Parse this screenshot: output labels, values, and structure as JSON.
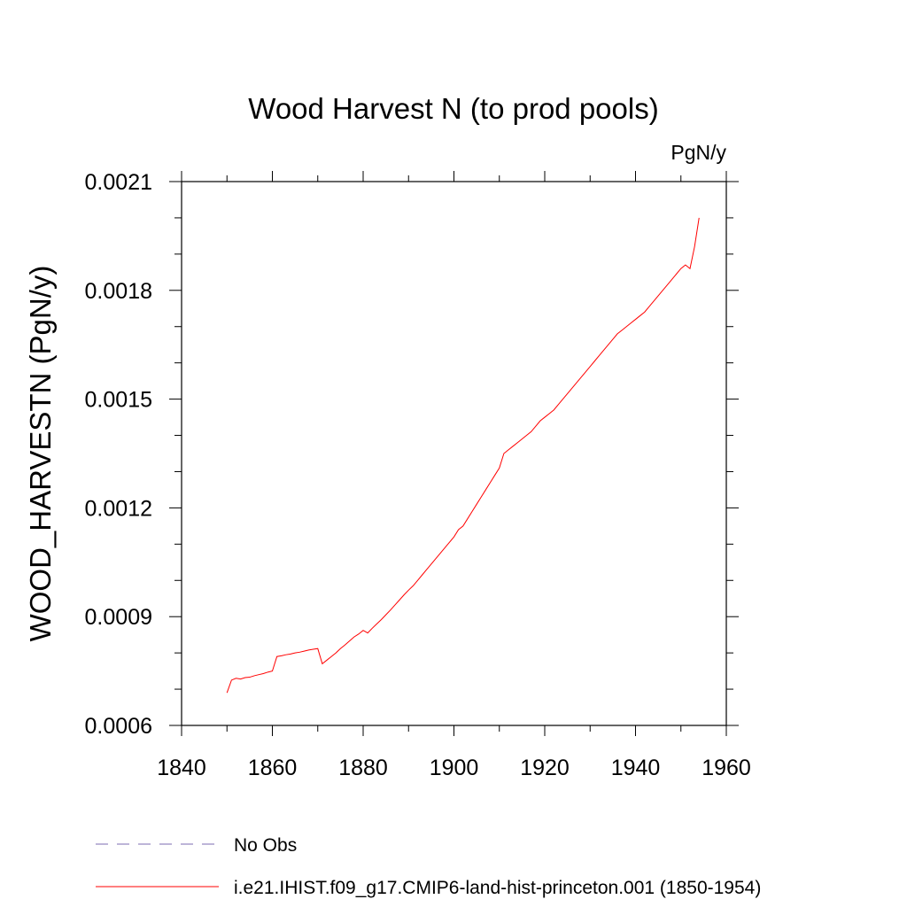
{
  "chart_data": {
    "type": "line",
    "title": "Wood Harvest N (to prod pools)",
    "units": "PgN/y",
    "xlabel": "",
    "ylabel": "WOOD_HARVESTN  (PgN/y)",
    "xlim": [
      1840,
      1960
    ],
    "ylim": [
      0.0006,
      0.0021
    ],
    "xticks": [
      1840,
      1860,
      1880,
      1900,
      1920,
      1940,
      1960
    ],
    "xtick_labels": [
      "1840",
      "1860",
      "1880",
      "1900",
      "1920",
      "1940",
      "1960"
    ],
    "yticks": [
      0.0006,
      0.0009,
      0.0012,
      0.0015,
      0.0018,
      0.0021
    ],
    "ytick_labels": [
      "0.0006",
      "0.0009",
      "0.0012",
      "0.0015",
      "0.0018",
      "0.0021"
    ],
    "grid": false,
    "legend_position": "bottom",
    "series": [
      {
        "name": "No Obs",
        "color": "#7b6bb0",
        "dash": "dashed",
        "x": [],
        "y": []
      },
      {
        "name": "i.e21.IHIST.f09_g17.CMIP6-land-hist-princeton.001 (1850-1954)",
        "color": "#ff0000",
        "dash": "solid",
        "x": [
          1850,
          1851,
          1852,
          1853,
          1854,
          1855,
          1856,
          1857,
          1858,
          1859,
          1860,
          1861,
          1862,
          1863,
          1864,
          1865,
          1866,
          1867,
          1868,
          1869,
          1870,
          1871,
          1872,
          1873,
          1874,
          1875,
          1876,
          1877,
          1878,
          1879,
          1880,
          1881,
          1882,
          1883,
          1884,
          1885,
          1886,
          1887,
          1888,
          1889,
          1890,
          1891,
          1892,
          1893,
          1894,
          1895,
          1896,
          1897,
          1898,
          1899,
          1900,
          1901,
          1902,
          1903,
          1904,
          1905,
          1906,
          1907,
          1908,
          1909,
          1910,
          1911,
          1912,
          1913,
          1914,
          1915,
          1916,
          1917,
          1918,
          1919,
          1920,
          1921,
          1922,
          1923,
          1924,
          1925,
          1926,
          1927,
          1928,
          1929,
          1930,
          1931,
          1932,
          1933,
          1934,
          1935,
          1936,
          1937,
          1938,
          1939,
          1940,
          1941,
          1942,
          1943,
          1944,
          1945,
          1946,
          1947,
          1948,
          1949,
          1950,
          1951,
          1952,
          1953,
          1954
        ],
        "y": [
          0.00069,
          0.000725,
          0.00073,
          0.000728,
          0.000732,
          0.000733,
          0.000737,
          0.00074,
          0.000743,
          0.000747,
          0.00075,
          0.00079,
          0.000792,
          0.000795,
          0.000797,
          0.0008,
          0.000802,
          0.000805,
          0.000808,
          0.00081,
          0.000812,
          0.00077,
          0.00078,
          0.00079,
          0.0008,
          0.000812,
          0.000822,
          0.000833,
          0.000844,
          0.000852,
          0.000862,
          0.000855,
          0.000868,
          0.00088,
          0.000892,
          0.000905,
          0.000918,
          0.000932,
          0.000946,
          0.00096,
          0.000973,
          0.000985,
          0.001,
          0.001015,
          0.00103,
          0.001045,
          0.00106,
          0.001075,
          0.00109,
          0.001105,
          0.00112,
          0.00114,
          0.00115,
          0.00117,
          0.00119,
          0.00121,
          0.00123,
          0.00125,
          0.00127,
          0.00129,
          0.00131,
          0.00135,
          0.00136,
          0.00137,
          0.00138,
          0.00139,
          0.0014,
          0.00141,
          0.001425,
          0.00144,
          0.00145,
          0.00146,
          0.00147,
          0.001485,
          0.0015,
          0.001515,
          0.00153,
          0.001545,
          0.00156,
          0.001575,
          0.00159,
          0.001605,
          0.00162,
          0.001635,
          0.00165,
          0.001665,
          0.00168,
          0.00169,
          0.0017,
          0.00171,
          0.00172,
          0.00173,
          0.00174,
          0.001755,
          0.00177,
          0.001785,
          0.0018,
          0.001815,
          0.00183,
          0.001845,
          0.00186,
          0.00187,
          0.00186,
          0.00192,
          0.002
        ]
      }
    ]
  }
}
